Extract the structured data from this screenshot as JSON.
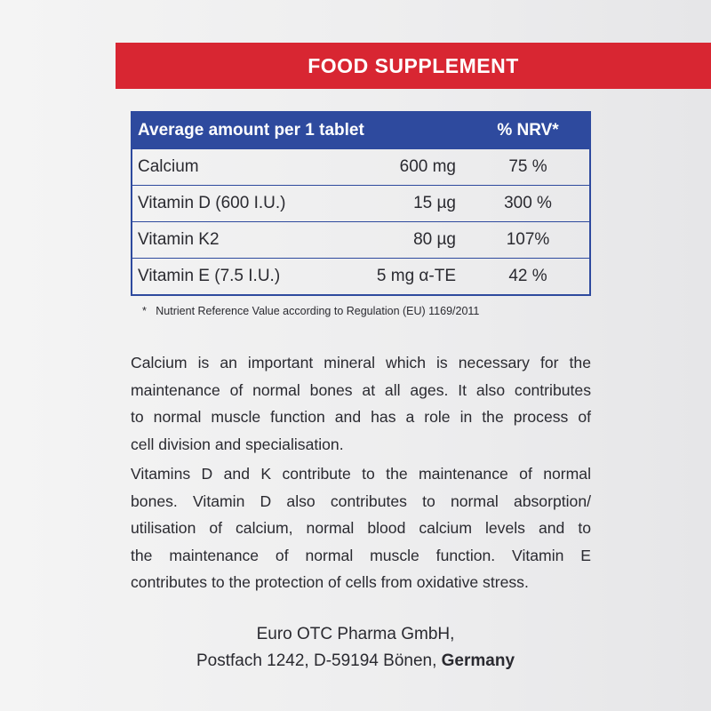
{
  "header": {
    "title": "FOOD SUPPLEMENT"
  },
  "table": {
    "header": [
      "Average amount per 1 tablet",
      "% NRV*"
    ],
    "rows": [
      [
        "Calcium",
        "600 mg",
        "75 %"
      ],
      [
        "Vitamin D (600 I.U.)",
        "15 µg",
        "300 %"
      ],
      [
        "Vitamin K2",
        "80 µg",
        "107%"
      ],
      [
        "Vitamin E (7.5 I.U.)",
        "5 mg α-TE",
        "42 %"
      ]
    ]
  },
  "footnote": "*   Nutrient Reference Value according to Regulation (EU) 1169/2011",
  "paragraphs": [
    [
      "Calcium is an important mineral which is necessary for the",
      "maintenance of normal bones at all ages. It also contributes",
      "to normal muscle function and has a role in the process of",
      "cell division and specialisation."
    ],
    [
      "Vitamins D and K contribute to the maintenance of normal",
      "bones. Vitamin D also contributes to normal absorption/",
      "utilisation of calcium, normal blood calcium levels and to",
      "the maintenance of normal muscle function. Vitamin E",
      "contributes to the protection of cells from oxidative stress."
    ]
  ],
  "address": {
    "line1": "Euro OTC Pharma GmbH,",
    "line2": "Postfach 1242, D-59194 Bönen,",
    "country": "Germany"
  }
}
